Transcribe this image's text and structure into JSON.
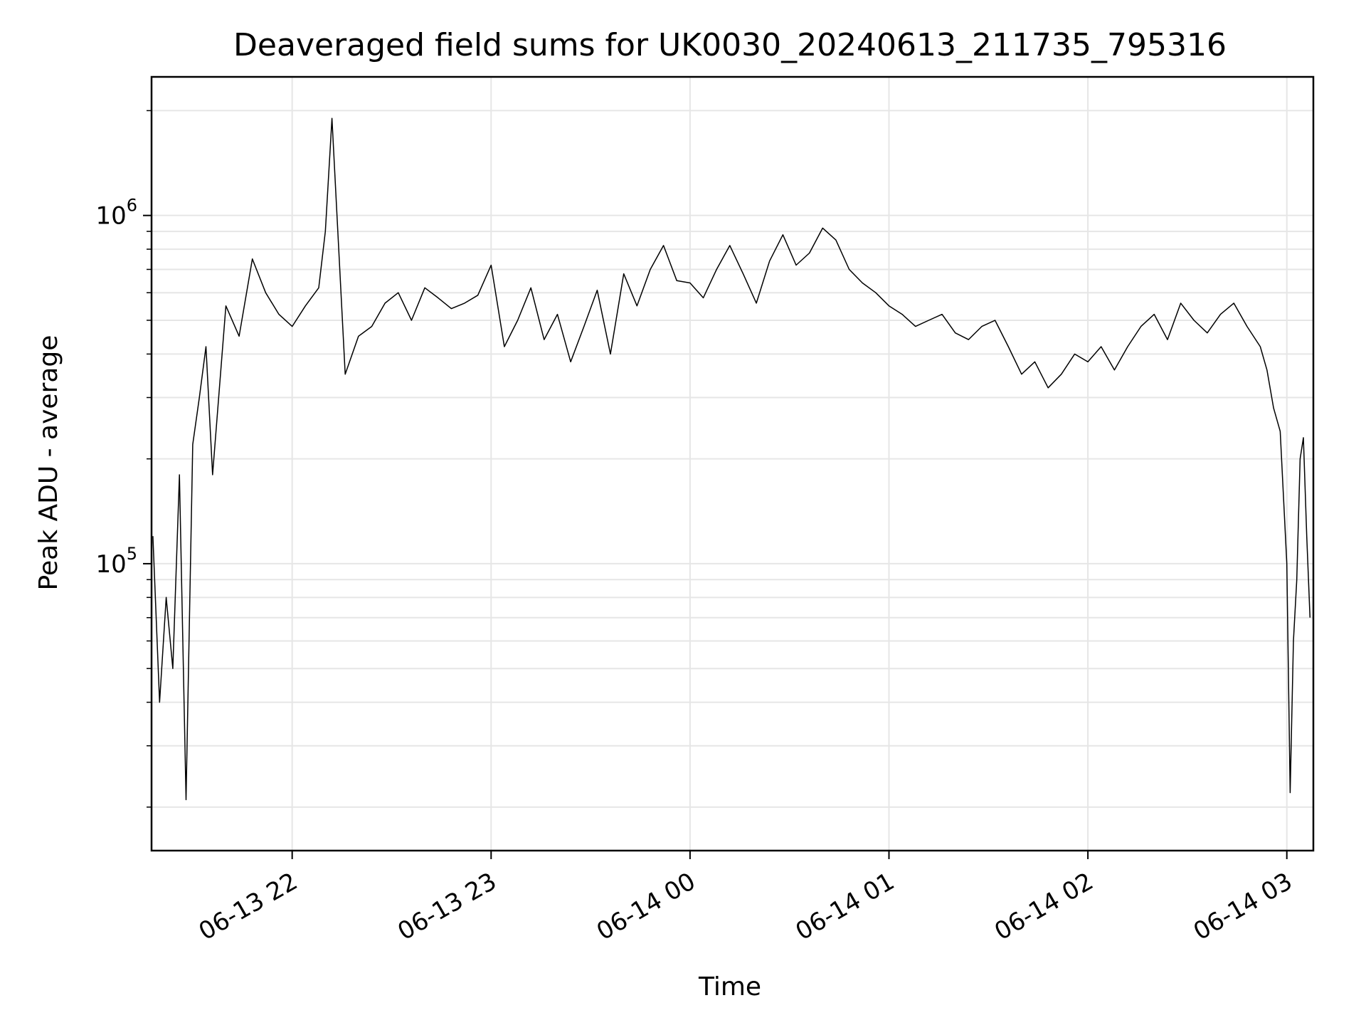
{
  "chart_data": {
    "type": "line",
    "title": "Deaveraged field sums for UK0030_20240613_211735_795316",
    "xlabel": "Time",
    "ylabel": "Peak ADU - average",
    "y_scale": "log",
    "xlim": [
      "2024-06-13 21:17:35",
      "2024-06-14 03:08:00"
    ],
    "ylim": [
      15000,
      2500000
    ],
    "grid": true,
    "line_color": "#000000",
    "grid_color": "#e6e6e6",
    "x_tick_labels": [
      "06-13 22",
      "06-13 23",
      "06-14 00",
      "06-14 01",
      "06-14 02",
      "06-14 03"
    ],
    "x_ticks": [
      "2024-06-13 22:00",
      "2024-06-13 23:00",
      "2024-06-14 00:00",
      "2024-06-14 01:00",
      "2024-06-14 02:00",
      "2024-06-14 03:00"
    ],
    "y_tick_labels": [
      {
        "base": "10",
        "exp": "5",
        "value": 100000
      },
      {
        "base": "10",
        "exp": "6",
        "value": 1000000
      }
    ],
    "series": [
      {
        "x": [
          "2024-06-13 21:18",
          "2024-06-13 21:20",
          "2024-06-13 21:22",
          "2024-06-13 21:24",
          "2024-06-13 21:26",
          "2024-06-13 21:28",
          "2024-06-13 21:30",
          "2024-06-13 21:32",
          "2024-06-13 21:34",
          "2024-06-13 21:36",
          "2024-06-13 21:40",
          "2024-06-13 21:44",
          "2024-06-13 21:48",
          "2024-06-13 21:52",
          "2024-06-13 21:56",
          "2024-06-13 22:00",
          "2024-06-13 22:04",
          "2024-06-13 22:08",
          "2024-06-13 22:10",
          "2024-06-13 22:12",
          "2024-06-13 22:16",
          "2024-06-13 22:20",
          "2024-06-13 22:24",
          "2024-06-13 22:28",
          "2024-06-13 22:32",
          "2024-06-13 22:36",
          "2024-06-13 22:40",
          "2024-06-13 22:44",
          "2024-06-13 22:48",
          "2024-06-13 22:52",
          "2024-06-13 22:56",
          "2024-06-13 23:00",
          "2024-06-13 23:04",
          "2024-06-13 23:08",
          "2024-06-13 23:12",
          "2024-06-13 23:16",
          "2024-06-13 23:20",
          "2024-06-13 23:24",
          "2024-06-13 23:28",
          "2024-06-13 23:32",
          "2024-06-13 23:36",
          "2024-06-13 23:40",
          "2024-06-13 23:44",
          "2024-06-13 23:48",
          "2024-06-13 23:52",
          "2024-06-13 23:56",
          "2024-06-14 00:00",
          "2024-06-14 00:04",
          "2024-06-14 00:08",
          "2024-06-14 00:12",
          "2024-06-14 00:16",
          "2024-06-14 00:20",
          "2024-06-14 00:24",
          "2024-06-14 00:28",
          "2024-06-14 00:32",
          "2024-06-14 00:36",
          "2024-06-14 00:40",
          "2024-06-14 00:44",
          "2024-06-14 00:48",
          "2024-06-14 00:52",
          "2024-06-14 00:56",
          "2024-06-14 01:00",
          "2024-06-14 01:04",
          "2024-06-14 01:08",
          "2024-06-14 01:12",
          "2024-06-14 01:16",
          "2024-06-14 01:20",
          "2024-06-14 01:24",
          "2024-06-14 01:28",
          "2024-06-14 01:32",
          "2024-06-14 01:36",
          "2024-06-14 01:40",
          "2024-06-14 01:44",
          "2024-06-14 01:48",
          "2024-06-14 01:52",
          "2024-06-14 01:56",
          "2024-06-14 02:00",
          "2024-06-14 02:04",
          "2024-06-14 02:08",
          "2024-06-14 02:12",
          "2024-06-14 02:16",
          "2024-06-14 02:20",
          "2024-06-14 02:24",
          "2024-06-14 02:28",
          "2024-06-14 02:32",
          "2024-06-14 02:36",
          "2024-06-14 02:40",
          "2024-06-14 02:44",
          "2024-06-14 02:48",
          "2024-06-14 02:52",
          "2024-06-14 02:54",
          "2024-06-14 02:56",
          "2024-06-14 02:58",
          "2024-06-14 03:00",
          "2024-06-14 03:01",
          "2024-06-14 03:02",
          "2024-06-14 03:03",
          "2024-06-14 03:04",
          "2024-06-14 03:05",
          "2024-06-14 03:06",
          "2024-06-14 03:07"
        ],
        "y": [
          120000,
          40000,
          80000,
          50000,
          180000,
          21000,
          220000,
          300000,
          420000,
          180000,
          550000,
          450000,
          750000,
          600000,
          520000,
          480000,
          550000,
          620000,
          900000,
          1900000,
          350000,
          450000,
          480000,
          560000,
          600000,
          500000,
          620000,
          580000,
          540000,
          560000,
          590000,
          720000,
          420000,
          500000,
          620000,
          440000,
          520000,
          380000,
          480000,
          610000,
          400000,
          680000,
          550000,
          700000,
          820000,
          650000,
          640000,
          580000,
          700000,
          820000,
          680000,
          560000,
          740000,
          880000,
          720000,
          780000,
          920000,
          850000,
          700000,
          640000,
          600000,
          550000,
          520000,
          480000,
          500000,
          520000,
          460000,
          440000,
          480000,
          500000,
          420000,
          350000,
          380000,
          320000,
          350000,
          400000,
          380000,
          420000,
          360000,
          420000,
          480000,
          520000,
          440000,
          560000,
          500000,
          460000,
          520000,
          560000,
          480000,
          420000,
          360000,
          280000,
          240000,
          100000,
          22000,
          60000,
          90000,
          200000,
          230000,
          120000,
          70000
        ]
      }
    ]
  }
}
